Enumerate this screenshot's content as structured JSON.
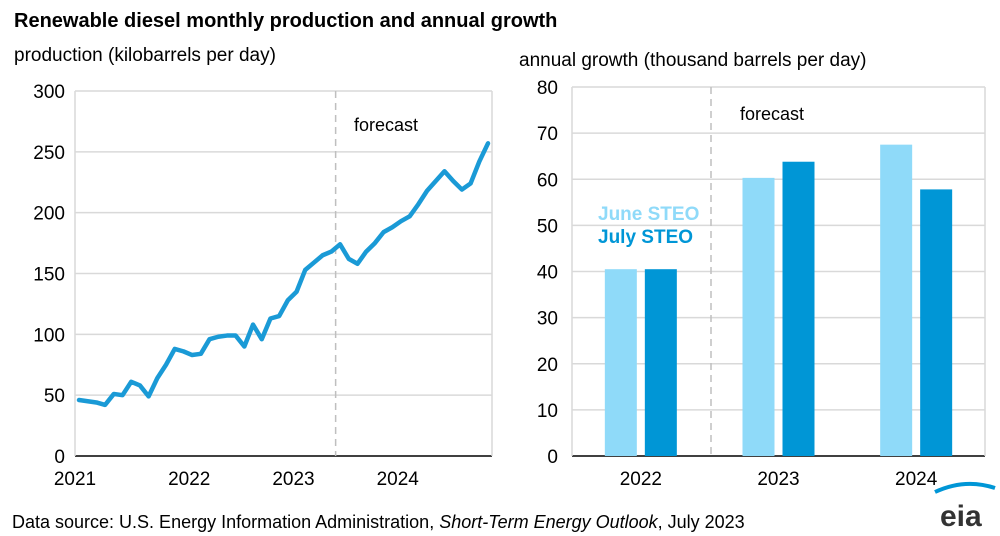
{
  "title": "Renewable diesel monthly production and annual growth",
  "source_prefix": "Data source: U.S. Energy Information Administration, ",
  "source_italic": "Short-Term Energy Outlook",
  "source_suffix": ", July 2023",
  "logo_text": "eia",
  "colors": {
    "line": "#1a9ad6",
    "june": "#8fdaf9",
    "july": "#0096d6",
    "grid": "#d9d9d9",
    "forecast_line": "#bfbfbf"
  },
  "chart_data": [
    {
      "type": "line",
      "ylabel": "production (kilobarrels per day)",
      "ylim": [
        0,
        300
      ],
      "yticks": [
        "0",
        "50",
        "100",
        "150",
        "200",
        "250",
        "300"
      ],
      "xticks": [
        "2021",
        "2022",
        "2023",
        "2024"
      ],
      "x_start": "2021-01",
      "x_end": "2024-12",
      "forecast_label": "forecast",
      "forecast_start": "2023-07",
      "grid": true,
      "values": [
        46,
        45,
        44,
        42,
        51,
        50,
        61,
        58,
        49,
        64,
        75,
        88,
        86,
        83,
        84,
        96,
        98,
        99,
        99,
        90,
        108,
        96,
        113,
        115,
        128,
        135,
        153,
        159,
        165,
        168,
        174,
        162,
        158,
        168,
        175,
        184,
        188,
        193,
        197,
        207,
        218,
        226,
        234,
        226,
        219,
        224,
        242,
        257
      ]
    },
    {
      "type": "bar",
      "ylabel": "annual growth (thousand barrels per day)",
      "ylim": [
        0,
        80
      ],
      "yticks": [
        "0",
        "10",
        "20",
        "30",
        "40",
        "50",
        "60",
        "70",
        "80"
      ],
      "categories": [
        "2022",
        "2023",
        "2024"
      ],
      "forecast_label": "forecast",
      "grid": true,
      "legend_placement": "left",
      "series": [
        {
          "name": "June STEO",
          "values": [
            40.5,
            60.3,
            67.5
          ]
        },
        {
          "name": "July STEO",
          "values": [
            40.5,
            63.8,
            57.8
          ]
        }
      ]
    }
  ]
}
